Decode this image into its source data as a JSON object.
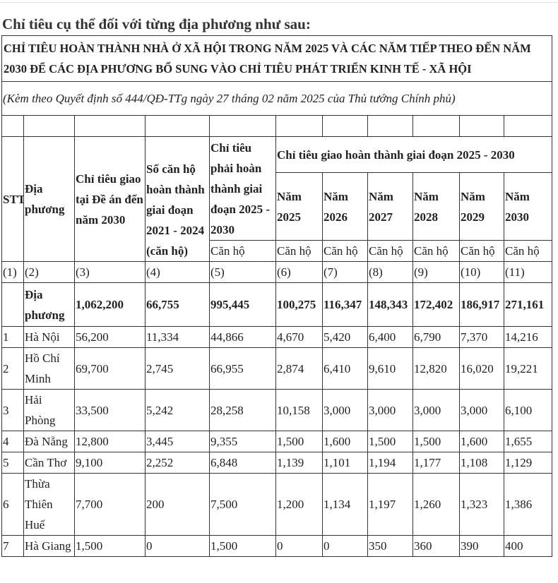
{
  "intro": "Chỉ tiêu cụ thể đối với từng địa phương như sau:",
  "title": "CHỈ TIÊU HOÀN THÀNH NHÀ Ở XÃ HỘI TRONG NĂM 2025 VÀ CÁC NĂM TIẾP THEO ĐẾN NĂM 2030 ĐỂ CÁC ĐỊA PHƯƠNG BỔ SUNG VÀO CHỈ TIÊU PHÁT TRIỂN KINH TẾ - XÃ HỘI",
  "subtitle": "(Kèm theo Quyết định số 444/QĐ-TTg ngày 27 tháng 02 năm 2025 của Thủ tướng Chính phủ)",
  "headers": {
    "stt": "STT",
    "locality": "Địa phương",
    "target_plan": "Chỉ tiêu giao tại Đề án đến năm 2030",
    "completed": "Số căn hộ hoàn thành giai đoạn 2021 - 2024 (căn hộ)",
    "required": "Chỉ tiêu phải hoàn thành giai đoạn 2025 - 2030",
    "period": "Chỉ tiêu giao hoàn thành giai đoạn 2025 - 2030",
    "years": [
      "Năm 2025",
      "Năm 2026",
      "Năm 2027",
      "Năm 2028",
      "Năm 2029",
      "Năm 2030"
    ],
    "unit": "Căn hộ",
    "col_numbers": [
      "(1)",
      "(2)",
      "(3)",
      "(4)",
      "(5)",
      "(6)",
      "(7)",
      "(8)",
      "(9)",
      "(10)",
      "(11)"
    ]
  },
  "total": {
    "label": "Địa phương",
    "values": [
      "1,062,200",
      "66,755",
      "995,445",
      "100,275",
      "116,347",
      "148,343",
      "172,402",
      "186,917",
      "271,161"
    ]
  },
  "rows": [
    {
      "stt": "1",
      "name": "Hà Nội",
      "values": [
        "56,200",
        "11,334",
        "44,866",
        "4,670",
        "5,420",
        "6,400",
        "6,790",
        "7,370",
        "14,216"
      ]
    },
    {
      "stt": "2",
      "name": "Hồ Chí Minh",
      "values": [
        "69,700",
        "2,745",
        "66,955",
        "2,874",
        "6,410",
        "9,610",
        "12,820",
        "16,020",
        "19,221"
      ]
    },
    {
      "stt": "3",
      "name": "Hải Phòng",
      "values": [
        "33,500",
        "5,242",
        "28,258",
        "10,158",
        "3,000",
        "3,000",
        "3,000",
        "3,000",
        "6,100"
      ]
    },
    {
      "stt": "4",
      "name": "Đà Nẵng",
      "values": [
        "12,800",
        "3,445",
        "9,355",
        "1,500",
        "1,600",
        "1,500",
        "1,500",
        "1,600",
        "1,655"
      ]
    },
    {
      "stt": "5",
      "name": "Cần Thơ",
      "values": [
        "9,100",
        "2,252",
        "6,848",
        "1,139",
        "1,101",
        "1,194",
        "1,177",
        "1,108",
        "1,129"
      ]
    },
    {
      "stt": "6",
      "name": "Thừa Thiên Huế",
      "values": [
        "7,700",
        "200",
        "7,500",
        "1,200",
        "1,134",
        "1,197",
        "1,260",
        "1,323",
        "1,386"
      ]
    },
    {
      "stt": "7",
      "name": "Hà Giang",
      "values": [
        "1,500",
        "0",
        "1,500",
        "0",
        "0",
        "350",
        "360",
        "390",
        "400"
      ]
    }
  ]
}
